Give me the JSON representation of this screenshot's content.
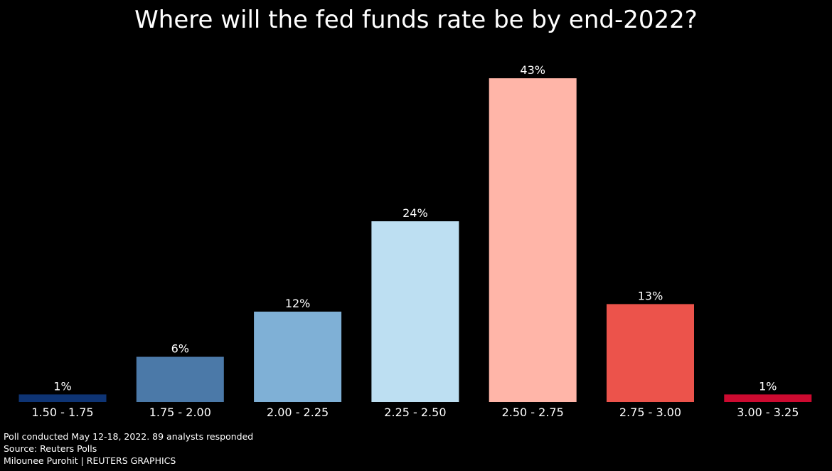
{
  "chart_data": {
    "type": "bar",
    "title": "Where will the fed funds rate be by end-2022?",
    "xlabel": "",
    "ylabel": "",
    "ylim": [
      0,
      45
    ],
    "grid": false,
    "legend": "none",
    "value_suffix": "%",
    "categories": [
      "1.50 - 1.75",
      "1.75 - 2.00",
      "2.00 - 2.25",
      "2.25 - 2.50",
      "2.50 - 2.75",
      "2.75 - 3.00",
      "3.00 - 3.25"
    ],
    "values": [
      1,
      6,
      12,
      24,
      43,
      13,
      1
    ],
    "data_labels": [
      "1%",
      "6%",
      "12%",
      "24%",
      "43%",
      "13%",
      "1%"
    ],
    "colors": [
      "#0e3474",
      "#4b79a8",
      "#7fb0d6",
      "#bddff2",
      "#ffb5a8",
      "#ec534b",
      "#cc0a30"
    ]
  },
  "footer": {
    "note": "Poll conducted May 12-18, 2022. 89 analysts responded",
    "source": "Source: Reuters Polls",
    "credit": "Milounee Purohit | REUTERS GRAPHICS"
  }
}
